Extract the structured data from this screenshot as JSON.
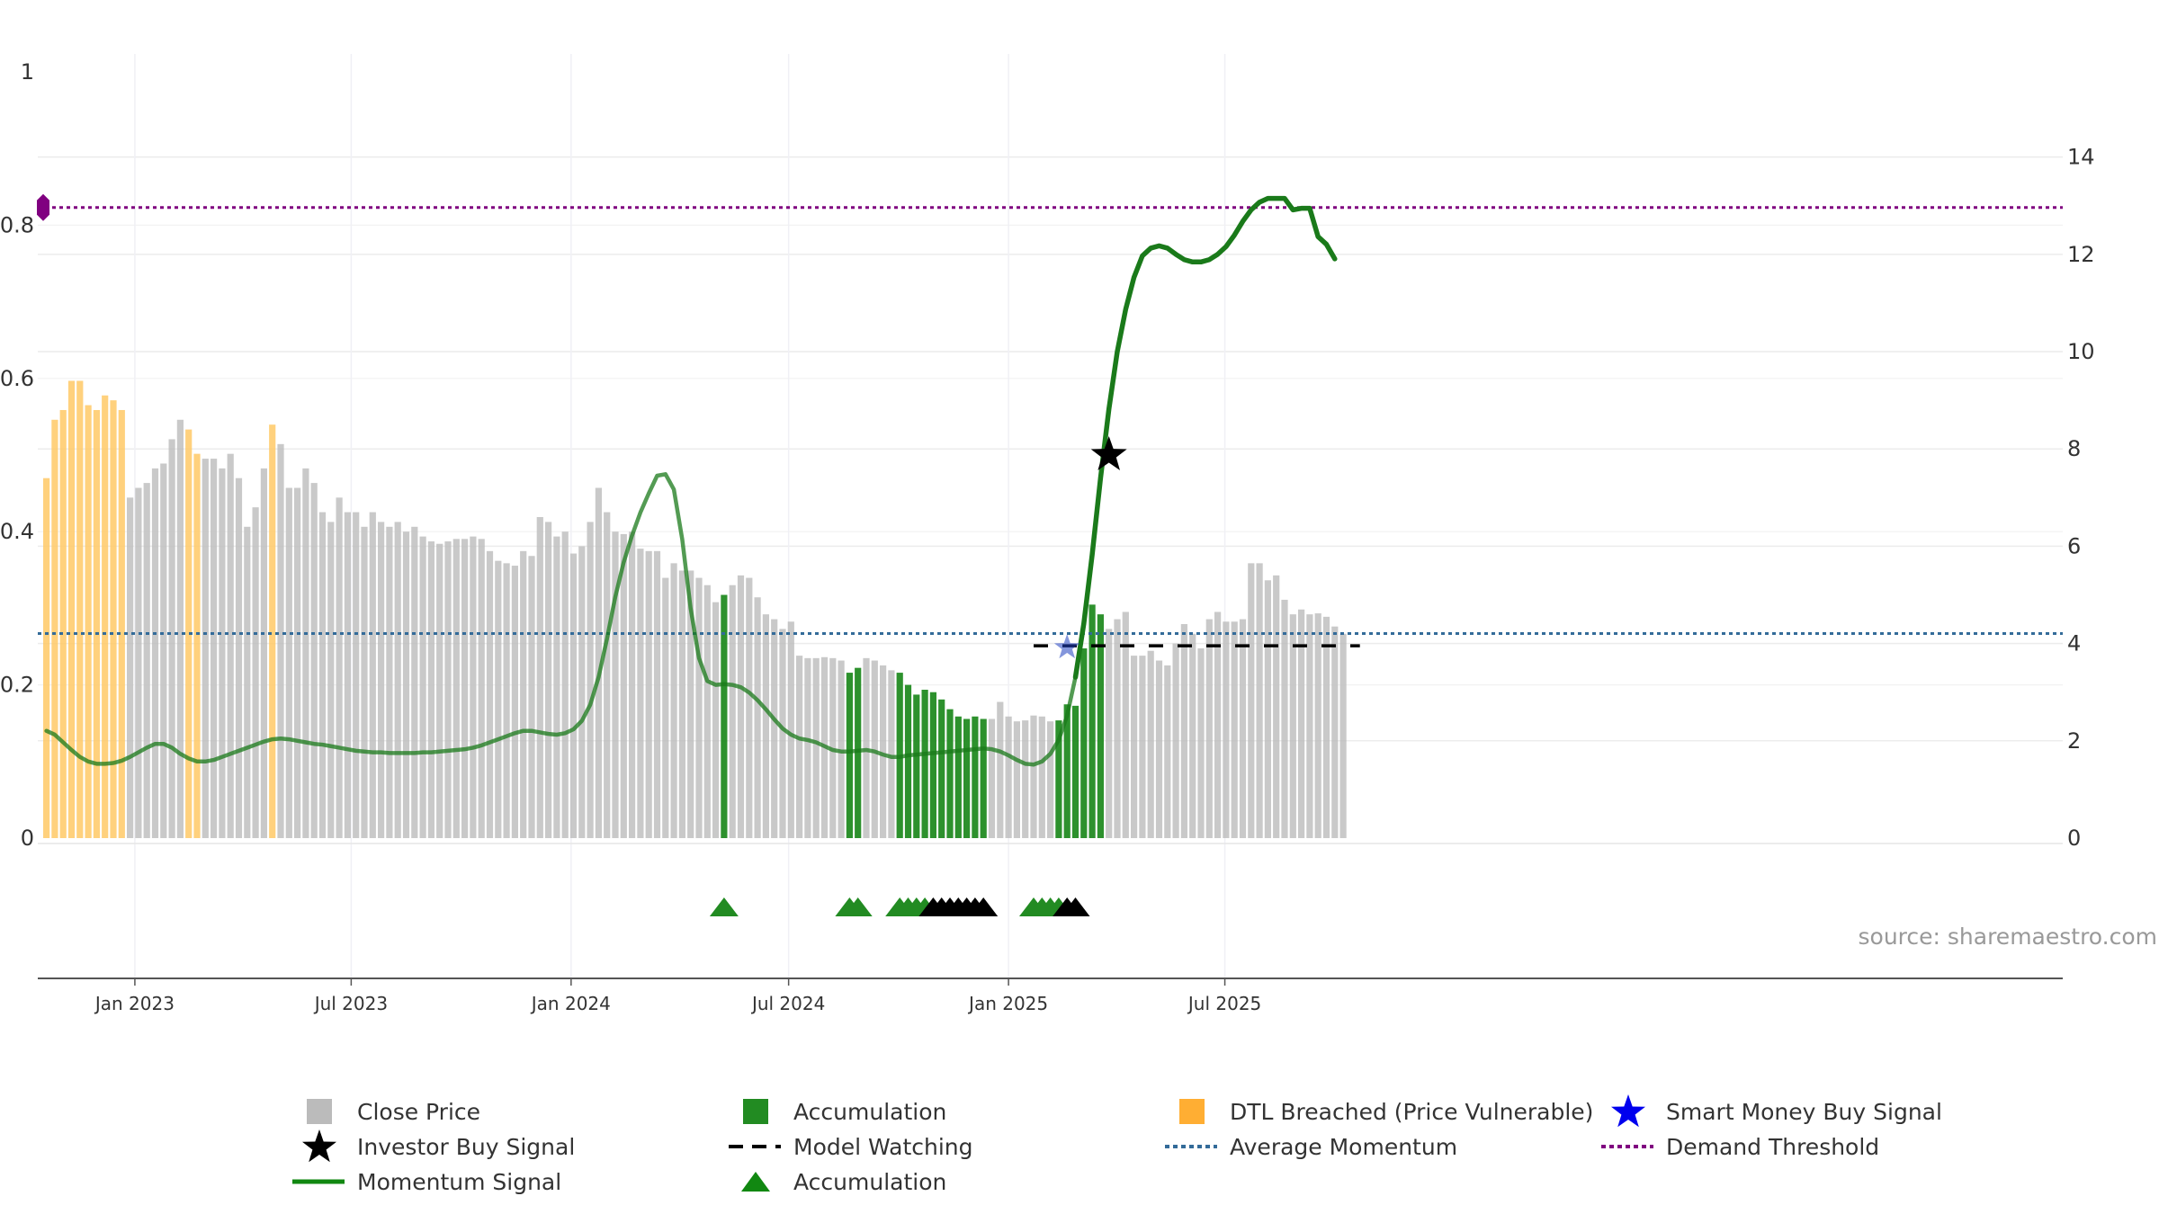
{
  "chart_data": {
    "type": "bar",
    "title": "",
    "source_label": "source: sharemaestro.com",
    "x_axis": {
      "tick_labels": [
        "Jan 2023",
        "Jul 2023",
        "Jan 2024",
        "Jul 2024",
        "Jan 2025",
        "Jul 2025"
      ],
      "tick_dates": [
        "2023-01-01",
        "2023-07-01",
        "2024-01-01",
        "2024-07-01",
        "2025-01-01",
        "2025-07-01"
      ],
      "start_date": "2022-10-19",
      "end_date": "2025-10-26",
      "bar_interval_days": 7
    },
    "y_left": {
      "range": [
        0,
        1
      ],
      "ticks": [
        0,
        0.2,
        0.4,
        0.6,
        0.8,
        1
      ],
      "tick_labels": [
        "0",
        "0.2",
        "0.4",
        "0.6",
        "0.8",
        "1"
      ]
    },
    "y_right": {
      "range": [
        0,
        15.75
      ],
      "ticks": [
        0,
        2,
        4,
        6,
        8,
        10,
        12,
        14
      ],
      "tick_labels": [
        "0",
        "2",
        "4",
        "6",
        "8",
        "10",
        "12",
        "14"
      ]
    },
    "grid": true,
    "legend_placement": "bottom",
    "colors": {
      "close_price": "#bbbbbb",
      "accumulation": "#228b22",
      "dtl_breached": "#ffc966",
      "momentum": "#1a7a1a",
      "average_momentum": "#336b99",
      "demand_threshold": "#800080",
      "investor_star": "#000000",
      "smart_money_star": "#1f3fbf",
      "model_watching": "#000000"
    },
    "bar_values": [
      7.4,
      8.6,
      8.8,
      9.4,
      9.4,
      8.9,
      8.8,
      9.1,
      9.0,
      8.8,
      7.0,
      7.2,
      7.3,
      7.6,
      7.7,
      8.2,
      8.6,
      8.4,
      7.9,
      7.8,
      7.8,
      7.6,
      7.9,
      7.4,
      6.4,
      6.8,
      7.6,
      8.5,
      8.1,
      7.2,
      7.2,
      7.6,
      7.3,
      6.7,
      6.5,
      7.0,
      6.7,
      6.7,
      6.4,
      6.7,
      6.5,
      6.4,
      6.5,
      6.3,
      6.4,
      6.2,
      6.1,
      6.05,
      6.1,
      6.15,
      6.15,
      6.2,
      6.15,
      5.9,
      5.7,
      5.65,
      5.6,
      5.9,
      5.8,
      6.6,
      6.5,
      6.2,
      6.3,
      5.85,
      6.0,
      6.5,
      7.2,
      6.7,
      6.3,
      6.25,
      6.3,
      5.95,
      5.9,
      5.9,
      5.35,
      5.65,
      5.5,
      5.5,
      5.35,
      5.2,
      4.85,
      5.0,
      5.2,
      5.4,
      5.35,
      4.95,
      4.6,
      4.5,
      4.3,
      4.45,
      3.75,
      3.7,
      3.7,
      3.72,
      3.7,
      3.65,
      3.4,
      3.5,
      3.7,
      3.65,
      3.55,
      3.45,
      3.4,
      3.15,
      2.95,
      3.05,
      3.0,
      2.85,
      2.65,
      2.5,
      2.45,
      2.5,
      2.45,
      2.45,
      2.8,
      2.5,
      2.4,
      2.42,
      2.52,
      2.5,
      2.4,
      2.42,
      2.75,
      2.72,
      3.9,
      4.8,
      4.6,
      4.3,
      4.5,
      4.65,
      3.75,
      3.75,
      3.85,
      3.65,
      3.55,
      4.0,
      4.4,
      4.2,
      3.9,
      4.5,
      4.65,
      4.45,
      4.45,
      4.5,
      5.65,
      5.65,
      5.3,
      5.4,
      4.9,
      4.6,
      4.7,
      4.6,
      4.62,
      4.55,
      4.35,
      4.2
    ],
    "bar_categories": [
      "D",
      "D",
      "D",
      "D",
      "D",
      "D",
      "D",
      "D",
      "D",
      "D",
      "C",
      "C",
      "C",
      "C",
      "C",
      "C",
      "C",
      "D",
      "D",
      "C",
      "C",
      "C",
      "C",
      "C",
      "C",
      "C",
      "C",
      "D",
      "C",
      "C",
      "C",
      "C",
      "C",
      "C",
      "C",
      "C",
      "C",
      "C",
      "C",
      "C",
      "C",
      "C",
      "C",
      "C",
      "C",
      "C",
      "C",
      "C",
      "C",
      "C",
      "C",
      "C",
      "C",
      "C",
      "C",
      "C",
      "C",
      "C",
      "C",
      "C",
      "C",
      "C",
      "C",
      "C",
      "C",
      "C",
      "C",
      "C",
      "C",
      "C",
      "C",
      "C",
      "C",
      "C",
      "C",
      "C",
      "C",
      "C",
      "C",
      "C",
      "C",
      "A",
      "C",
      "C",
      "C",
      "C",
      "C",
      "C",
      "C",
      "C",
      "C",
      "C",
      "C",
      "C",
      "C",
      "C",
      "A",
      "A",
      "C",
      "C",
      "C",
      "C",
      "A",
      "A",
      "A",
      "A",
      "A",
      "A",
      "A",
      "A",
      "A",
      "A",
      "A",
      "C",
      "C",
      "C",
      "C",
      "C",
      "C",
      "C",
      "C",
      "A",
      "A",
      "A",
      "A",
      "A",
      "A",
      "C",
      "C",
      "C",
      "C",
      "C",
      "C",
      "C",
      "C",
      "C",
      "C",
      "C",
      "C",
      "C",
      "C",
      "C",
      "C",
      "C",
      "C",
      "C",
      "C",
      "C",
      "C",
      "C",
      "C",
      "C",
      "C",
      "C",
      "C",
      "C",
      "C",
      "C",
      "C"
    ],
    "momentum_series": {
      "start_index": 0,
      "values": [
        0.14,
        0.135,
        0.125,
        0.115,
        0.106,
        0.1,
        0.097,
        0.097,
        0.098,
        0.101,
        0.106,
        0.112,
        0.118,
        0.123,
        0.123,
        0.118,
        0.11,
        0.104,
        0.1,
        0.1,
        0.102,
        0.106,
        0.11,
        0.114,
        0.118,
        0.122,
        0.126,
        0.129,
        0.13,
        0.129,
        0.127,
        0.125,
        0.123,
        0.122,
        0.12,
        0.118,
        0.116,
        0.114,
        0.113,
        0.112,
        0.112,
        0.111,
        0.111,
        0.111,
        0.111,
        0.112,
        0.112,
        0.113,
        0.114,
        0.115,
        0.116,
        0.118,
        0.121,
        0.125,
        0.129,
        0.133,
        0.137,
        0.14,
        0.14,
        0.138,
        0.136,
        0.135,
        0.137,
        0.142,
        0.153,
        0.174,
        0.21,
        0.26,
        0.315,
        0.36,
        0.395,
        0.425,
        0.45,
        0.473,
        0.475,
        0.455,
        0.39,
        0.3,
        0.235,
        0.205,
        0.2,
        0.201,
        0.2,
        0.197,
        0.19,
        0.18,
        0.168,
        0.155,
        0.143,
        0.135,
        0.13,
        0.128,
        0.125,
        0.12,
        0.115,
        0.113,
        0.113,
        0.114,
        0.115,
        0.113,
        0.109,
        0.106,
        0.106,
        0.108,
        0.109,
        0.11,
        0.111,
        0.112,
        0.113,
        0.114,
        0.115,
        0.116,
        0.117,
        0.116,
        0.113,
        0.108,
        0.102,
        0.097,
        0.096,
        0.1,
        0.11,
        0.128,
        0.16,
        0.21,
        0.28,
        0.37,
        0.47,
        0.56,
        0.635,
        0.69,
        0.732,
        0.76,
        0.77,
        0.773,
        0.77,
        0.762,
        0.755,
        0.752,
        0.752,
        0.755,
        0.762,
        0.772,
        0.787,
        0.805,
        0.82,
        0.83,
        0.835,
        0.835,
        0.835,
        0.82,
        0.822,
        0.822,
        0.785,
        0.775,
        0.756
      ]
    },
    "average_momentum": 0.267,
    "demand_threshold": 0.823,
    "model_watching": {
      "y": 0.251,
      "from_index": 118,
      "to_index": 157
    },
    "investor_buy_signal": {
      "index": 127,
      "y": 0.5
    },
    "smart_money_buy_signal": {
      "index": 122,
      "y": 0.25
    },
    "demand_marker": {
      "index": 0,
      "y": 0.823
    },
    "accumulation_triangles": {
      "green_indices": [
        81,
        96,
        97,
        102,
        103,
        104,
        105,
        118,
        119,
        120,
        121
      ],
      "black_indices": [
        106,
        107,
        108,
        109,
        110,
        111,
        112,
        122,
        123
      ]
    },
    "legend": [
      {
        "label": "Close Price",
        "symbol": "gray-square"
      },
      {
        "label": "Accumulation",
        "symbol": "green-square"
      },
      {
        "label": "DTL Breached (Price Vulnerable)",
        "symbol": "orange-square"
      },
      {
        "label": "Smart Money Buy Signal",
        "symbol": "blue-star"
      },
      {
        "label": "Investor Buy Signal",
        "symbol": "black-star"
      },
      {
        "label": "Model Watching",
        "symbol": "black-dashed-line"
      },
      {
        "label": "Average Momentum",
        "symbol": "blue-dotted-line"
      },
      {
        "label": "Demand Threshold",
        "symbol": "purple-dotted-line"
      },
      {
        "label": "Momentum Signal",
        "symbol": "green-line"
      },
      {
        "label": "Accumulation",
        "symbol": "green-triangle"
      }
    ]
  }
}
